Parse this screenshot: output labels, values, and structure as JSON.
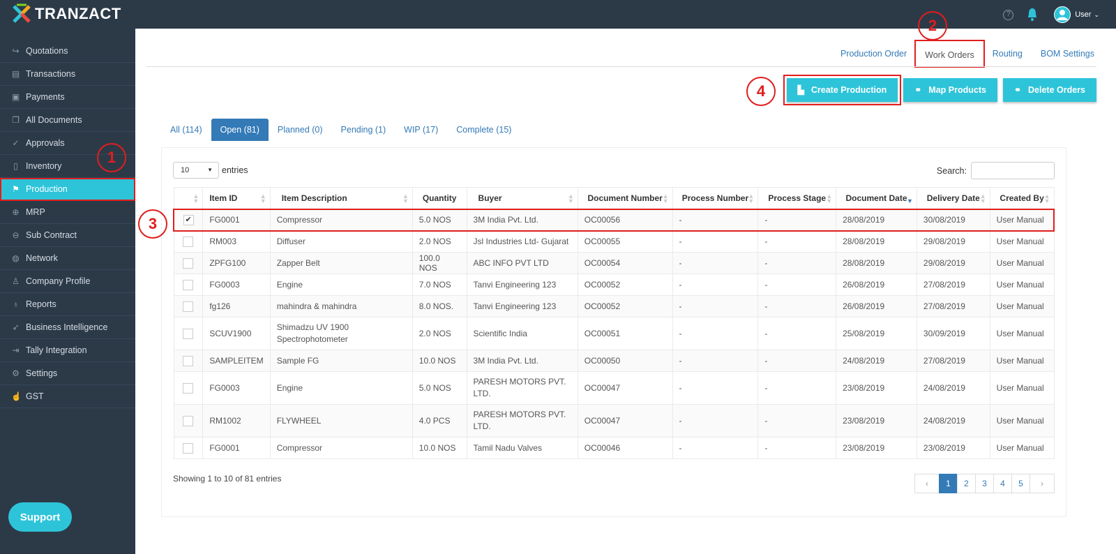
{
  "app": {
    "name": "TRANZACT"
  },
  "header": {
    "help_glyph": "?",
    "user_label": "User",
    "caret": "⌄"
  },
  "sidebar": {
    "items": [
      {
        "label": "Quotations",
        "icon": "share-icon",
        "glyph": "↪"
      },
      {
        "label": "Transactions",
        "icon": "book-icon",
        "glyph": "▤"
      },
      {
        "label": "Payments",
        "icon": "money-icon",
        "glyph": "▣"
      },
      {
        "label": "All Documents",
        "icon": "documents-icon",
        "glyph": "❐"
      },
      {
        "label": "Approvals",
        "icon": "check-circle-icon",
        "glyph": "✓"
      },
      {
        "label": "Inventory",
        "icon": "clipboard-icon",
        "glyph": "▯"
      },
      {
        "label": "Production",
        "icon": "production-icon",
        "glyph": "⚑"
      },
      {
        "label": "MRP",
        "icon": "crosshair-icon",
        "glyph": "⊕"
      },
      {
        "label": "Sub Contract",
        "icon": "arrow-circle-icon",
        "glyph": "⊖"
      },
      {
        "label": "Network",
        "icon": "globe-icon",
        "glyph": "◍"
      },
      {
        "label": "Company Profile",
        "icon": "user-icon",
        "glyph": "♙"
      },
      {
        "label": "Reports",
        "icon": "bulb-icon",
        "glyph": "♁"
      },
      {
        "label": "Business Intelligence",
        "icon": "rocket-icon",
        "glyph": "➶"
      },
      {
        "label": "Tally Integration",
        "icon": "sign-in-icon",
        "glyph": "⇥"
      },
      {
        "label": "Settings",
        "icon": "gear-icon",
        "glyph": "⚙"
      },
      {
        "label": "GST",
        "icon": "hand-icon",
        "glyph": "☝"
      }
    ],
    "support_label": "Support"
  },
  "topnav": [
    "Production Order",
    "Work Orders",
    "Routing",
    "BOM Settings"
  ],
  "actions": {
    "create": "Create Production",
    "map": "Map Products",
    "delete": "Delete Orders"
  },
  "tabs": [
    "All (114)",
    "Open (81)",
    "Planned (0)",
    "Pending (1)",
    "WIP (17)",
    "Complete (15)"
  ],
  "table_controls": {
    "page_size": "10",
    "entries_label": "entries",
    "search_label": "Search:"
  },
  "columns": [
    "Item ID",
    "Item Description",
    "Quantity",
    "Buyer",
    "Document Number",
    "Process Number",
    "Process Stage",
    "Document Date",
    "Delivery Date",
    "Created By"
  ],
  "rows": [
    [
      "FG0001",
      "Compressor",
      "5.0 NOS",
      "3M India Pvt. Ltd.",
      "OC00056",
      "-",
      "-",
      "28/08/2019",
      "30/08/2019",
      "User Manual"
    ],
    [
      "RM003",
      "Diffuser",
      "2.0 NOS",
      "Jsl Industries Ltd- Gujarat",
      "OC00055",
      "-",
      "-",
      "28/08/2019",
      "29/08/2019",
      "User Manual"
    ],
    [
      "ZPFG100",
      "Zapper Belt",
      "100.0 NOS",
      "ABC INFO PVT LTD",
      "OC00054",
      "-",
      "-",
      "28/08/2019",
      "29/08/2019",
      "User Manual"
    ],
    [
      "FG0003",
      "Engine",
      "7.0 NOS",
      "Tanvi Engineering 123",
      "OC00052",
      "-",
      "-",
      "26/08/2019",
      "27/08/2019",
      "User Manual"
    ],
    [
      "fg126",
      "mahindra & mahindra",
      "8.0 NOS.",
      "Tanvi Engineering 123",
      "OC00052",
      "-",
      "-",
      "26/08/2019",
      "27/08/2019",
      "User Manual"
    ],
    [
      "SCUV1900",
      "Shimadzu UV 1900 Spectrophotometer",
      "2.0 NOS",
      "Scientific India",
      "OC00051",
      "-",
      "-",
      "25/08/2019",
      "30/09/2019",
      "User Manual"
    ],
    [
      "SAMPLEITEM",
      "Sample FG",
      "10.0 NOS",
      "3M India Pvt. Ltd.",
      "OC00050",
      "-",
      "-",
      "24/08/2019",
      "27/08/2019",
      "User Manual"
    ],
    [
      "FG0003",
      "Engine",
      "5.0 NOS",
      "PARESH MOTORS PVT. LTD.",
      "OC00047",
      "-",
      "-",
      "23/08/2019",
      "24/08/2019",
      "User Manual"
    ],
    [
      "RM1002",
      "FLYWHEEL",
      "4.0 PCS",
      "PARESH MOTORS PVT. LTD.",
      "OC00047",
      "-",
      "-",
      "23/08/2019",
      "24/08/2019",
      "User Manual"
    ],
    [
      "FG0001",
      "Compressor",
      "10.0 NOS",
      "Tamil Nadu Valves",
      "OC00046",
      "-",
      "-",
      "23/08/2019",
      "23/08/2019",
      "User Manual"
    ]
  ],
  "checked": [
    true,
    false,
    false,
    false,
    false,
    false,
    false,
    false,
    false,
    false
  ],
  "footer": {
    "showing": "Showing 1 to 10 of 81 entries"
  },
  "pagination": {
    "prev": "‹",
    "pages": [
      "1",
      "2",
      "3",
      "4",
      "5"
    ],
    "next": "›",
    "current": "1"
  },
  "annotations": [
    "1",
    "2",
    "3",
    "4"
  ],
  "colors": {
    "sidebar": "#2c3a48",
    "accent": "#2dc4d9",
    "link": "#337ab7",
    "annotation": "#e11d1d"
  }
}
